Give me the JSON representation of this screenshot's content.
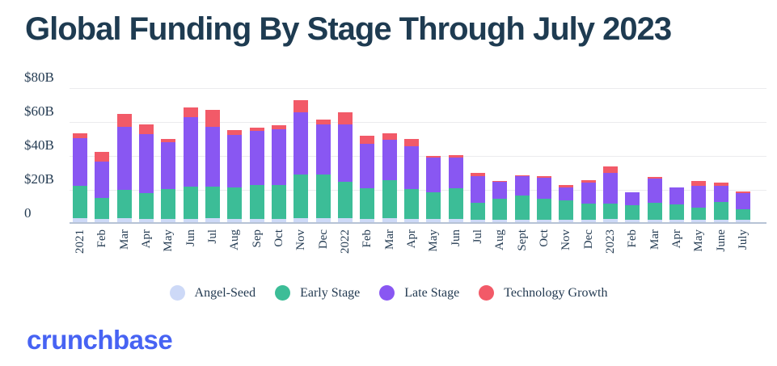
{
  "title": "Global Funding By Stage Through July 2023",
  "chart_data": {
    "type": "bar",
    "stacked": true,
    "unit": "$B",
    "title": "Global Funding By Stage Through July 2023",
    "xlabel": "",
    "ylabel": "",
    "ylim": [
      0,
      80
    ],
    "grid": true,
    "legend_position": "bottom",
    "y_ticks": [
      "$80B",
      "$60B",
      "$40B",
      "$20B",
      "0"
    ],
    "categories": [
      "2021",
      "Feb",
      "Mar",
      "Apr",
      "May",
      "Jun",
      "Jul",
      "Aug",
      "Sep",
      "Oct",
      "Nov",
      "Dec",
      "2022",
      "Feb",
      "Mar",
      "Apr",
      "May",
      "Jun",
      "Jul",
      "Aug",
      "Sept",
      "Oct",
      "Nov",
      "Dec",
      "2023",
      "Feb",
      "Mar",
      "Apr",
      "May",
      "June",
      "July"
    ],
    "series": [
      {
        "name": "Angel-Seed",
        "color": "#cdd9f7",
        "values": [
          2.5,
          2,
          2.5,
          2,
          2,
          2,
          2.5,
          2,
          2,
          2,
          2.5,
          2.5,
          2.5,
          2,
          2.5,
          2,
          2,
          2,
          1.5,
          1.5,
          1.5,
          1.5,
          1.5,
          1.5,
          2,
          1.5,
          1.5,
          1.5,
          1.5,
          1.5,
          1.5
        ]
      },
      {
        "name": "Early Stage",
        "color": "#3cbd97",
        "values": [
          19,
          12.5,
          16.5,
          15,
          17.5,
          19,
          18.5,
          18.5,
          20,
          20,
          25.5,
          25.5,
          21.5,
          18,
          22.5,
          17.5,
          15.5,
          18,
          10,
          12.5,
          14,
          12.5,
          11.5,
          9.5,
          9,
          8.5,
          10,
          9,
          7,
          10.5,
          6
        ]
      },
      {
        "name": "Late Stage",
        "color": "#8957f2",
        "values": [
          28,
          21,
          37,
          35,
          27.5,
          41,
          35,
          31,
          32,
          33,
          37,
          29.5,
          33.5,
          26,
          23.5,
          25.5,
          20.5,
          18,
          15.5,
          10,
          11.5,
          12,
          7.5,
          12.5,
          18,
          7.5,
          14,
          10,
          13,
          9.5,
          9.5
        ]
      },
      {
        "name": "Technology Growth",
        "color": "#f25a68",
        "values": [
          3,
          6,
          8,
          5.5,
          2,
          5.5,
          10,
          3,
          1.5,
          2,
          7,
          3,
          7.5,
          5,
          4,
          4,
          1,
          1.5,
          2,
          0.5,
          0.5,
          1,
          1.5,
          1.5,
          4,
          0,
          1,
          0,
          3,
          2,
          1
        ]
      }
    ]
  },
  "colors": {
    "title_text": "#1e3b51",
    "axis_text": "#243b52",
    "gridline": "#ebebee",
    "axis_line": "#b7c3d5",
    "logo_blue": "#4763f3",
    "background": "#ffffff"
  },
  "footer": {
    "logo_text": "crunchbase"
  }
}
